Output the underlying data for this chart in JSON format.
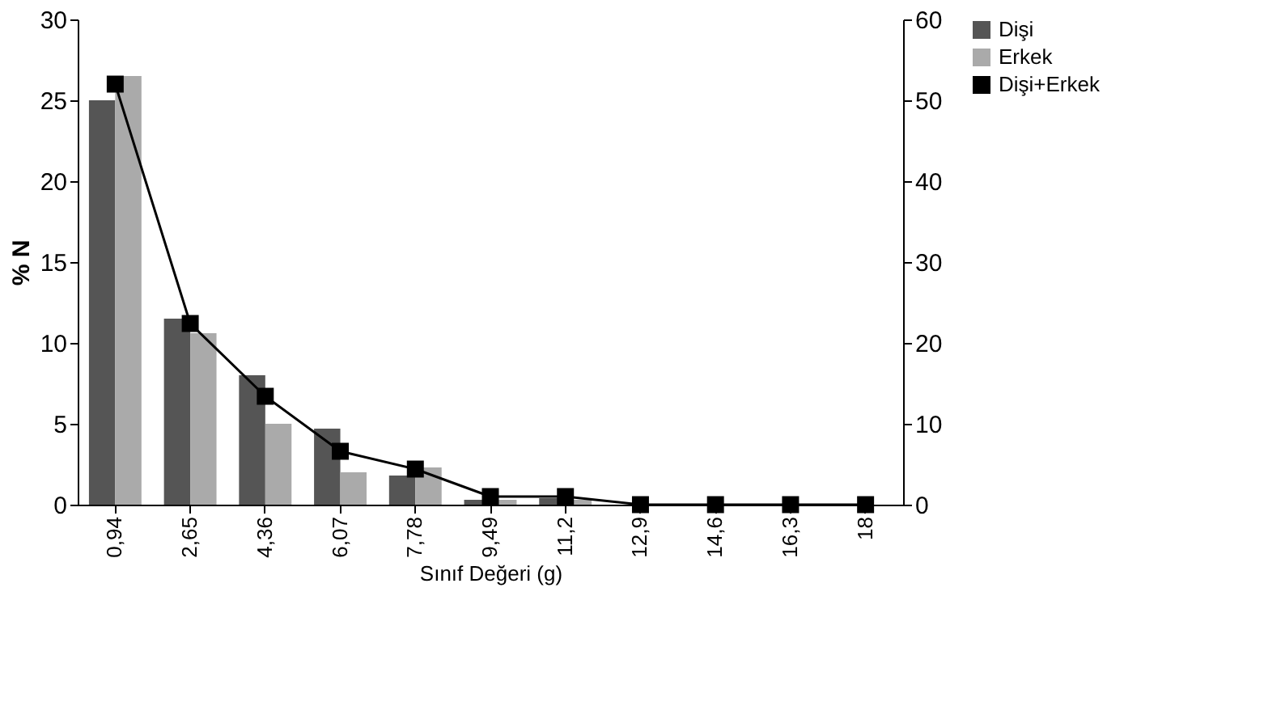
{
  "chart_data": {
    "type": "bar",
    "xlabel": "Sınıf Değeri (g)",
    "ylabel": "% N",
    "categories": [
      "0,94",
      "2,65",
      "4,36",
      "6,07",
      "7,78",
      "9,49",
      "11,2",
      "12,9",
      "14,6",
      "16,3",
      "18"
    ],
    "series": [
      {
        "name": "Dişi",
        "color": "#555555",
        "values": [
          25,
          11.5,
          8,
          4.7,
          1.8,
          0.3,
          0.4,
          0,
          0,
          0,
          0
        ]
      },
      {
        "name": "Erkek",
        "color": "#aaaaaa",
        "values": [
          26.5,
          10.6,
          5,
          2,
          2.3,
          0.3,
          0.3,
          0,
          0,
          0,
          0
        ]
      },
      {
        "name": "Dişi+Erkek",
        "color": "#000000",
        "type": "line",
        "axis": "y2",
        "values": [
          52,
          22.4,
          13.4,
          6.6,
          4.4,
          1,
          1,
          0,
          0,
          0,
          0
        ]
      }
    ],
    "ylim": [
      0,
      30
    ],
    "yticks": [
      0,
      5,
      10,
      15,
      20,
      25,
      30
    ],
    "y2lim": [
      0,
      60
    ],
    "y2ticks": [
      0,
      10,
      20,
      30,
      40,
      50,
      60
    ],
    "grid": false,
    "legend": "right",
    "marker": "square",
    "line_style": "solid"
  }
}
